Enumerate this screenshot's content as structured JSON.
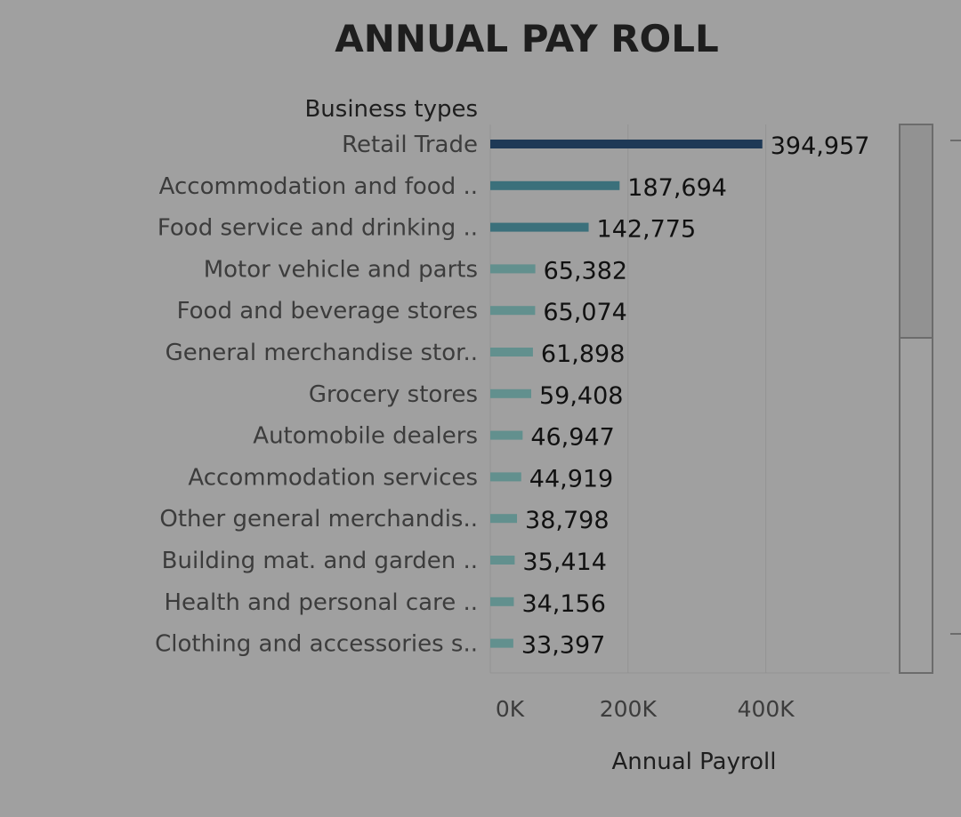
{
  "chart_data": {
    "type": "bar",
    "orientation": "horizontal",
    "title": "ANNUAL PAY ROLL",
    "category_header": "Business types",
    "xlabel": "Annual Payroll",
    "categories": [
      "Retail Trade",
      "Accommodation and food ..",
      "Food service and drinking ..",
      "Motor vehicle and parts",
      "Food and beverage stores",
      "General merchandise stor..",
      "Grocery stores",
      "Automobile dealers",
      "Accommodation services",
      "Other general merchandis..",
      "Building mat. and garden ..",
      "Health and personal care ..",
      "Clothing and accessories s.."
    ],
    "values": [
      394957,
      187694,
      142775,
      65382,
      65074,
      61898,
      59408,
      46947,
      44919,
      38798,
      35414,
      34156,
      33397
    ],
    "value_labels": [
      "394,957",
      "187,694",
      "142,775",
      "65,382",
      "65,074",
      "61,898",
      "59,408",
      "46,947",
      "44,919",
      "38,798",
      "35,414",
      "34,156",
      "33,397"
    ],
    "xlim": [
      0,
      580000
    ],
    "xticks": [
      0,
      200000,
      400000
    ],
    "xtick_labels": [
      "0K",
      "200K",
      "400K"
    ],
    "grid": true,
    "colors": {
      "background": "#a0a0a0",
      "bar_high": "#1e3956",
      "bar_mid": "#3b707b",
      "bar_low": "#62908e",
      "gridline": "#939393"
    }
  },
  "legend_scrollbar": {
    "visible": true
  }
}
